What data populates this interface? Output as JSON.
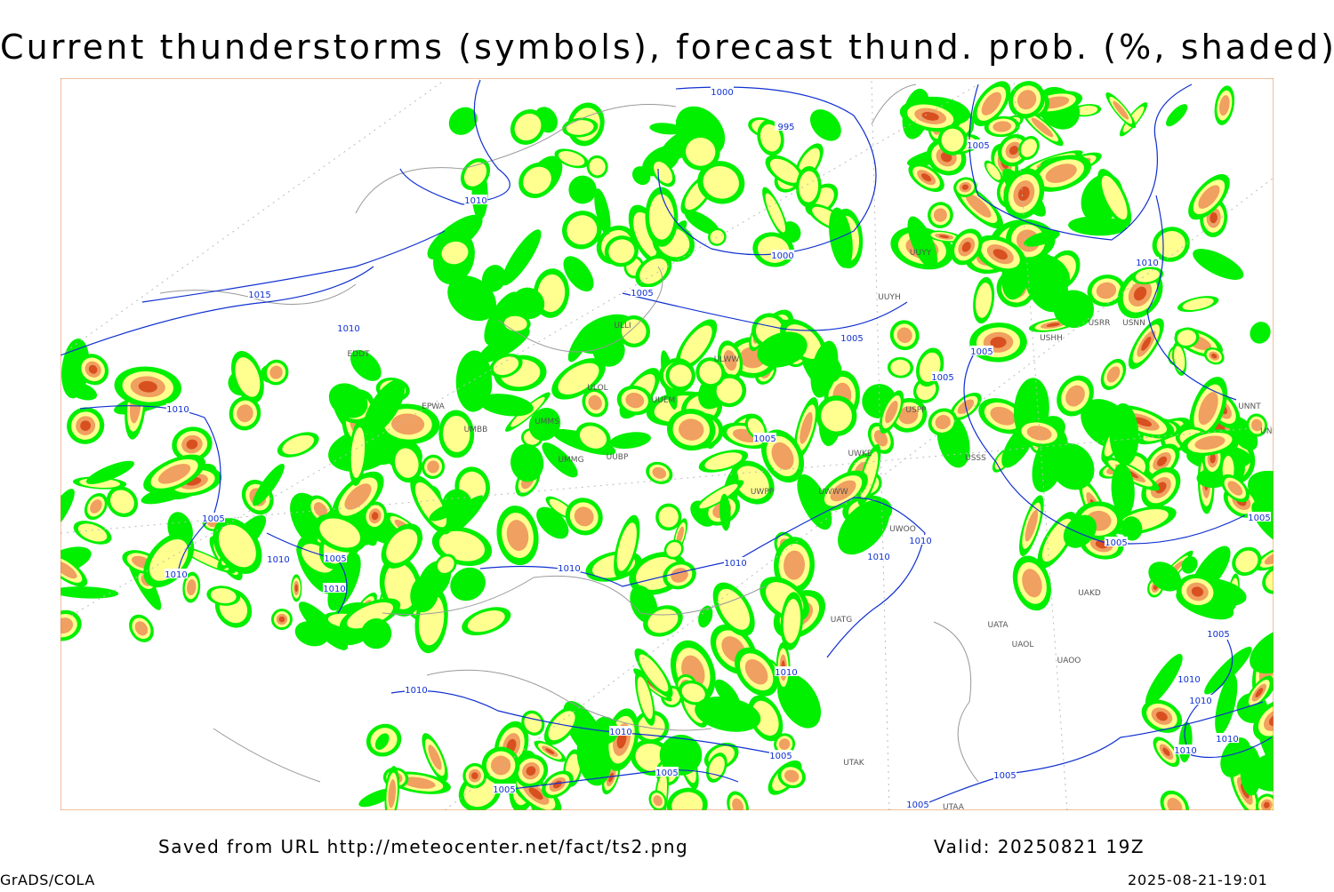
{
  "title": "Current thunderstorms (symbols), forecast thund. prob. (%, shaded)",
  "footer": {
    "saved": "Saved from URL http://meteocenter.net/fact/ts2.png",
    "valid": "Valid: 20250821 19Z",
    "software": "GrADS/COLA",
    "timestamp": "2025-08-21-19:01"
  },
  "map": {
    "isobar_labels": [
      1000,
      995,
      1005,
      1010,
      1000,
      1005,
      1015,
      1010,
      1005,
      1010,
      1005,
      1005,
      1010,
      1005,
      1005,
      1010,
      1005,
      1010,
      1010,
      1010,
      1010,
      1010,
      1010,
      1005,
      1005,
      1005,
      1010,
      1010,
      1010,
      1005,
      1005,
      1005,
      1005,
      1005,
      1010,
      1010,
      1010,
      1010
    ],
    "stations": [
      "EDDT",
      "EPWA",
      "UMMS",
      "UMBB",
      "UMMG",
      "UUBP",
      "ULLI",
      "ULOL",
      "UUEM",
      "ULWW",
      "UWKE",
      "UWPP",
      "UWWW",
      "UWOO",
      "UATG",
      "UATA",
      "UAOL",
      "UAOO",
      "UAKD",
      "UTAK",
      "UTAA",
      "USSS",
      "USPP",
      "USNN",
      "USRR",
      "USHH",
      "UNNT",
      "UNBB",
      "UUYY",
      "UUYH"
    ]
  }
}
